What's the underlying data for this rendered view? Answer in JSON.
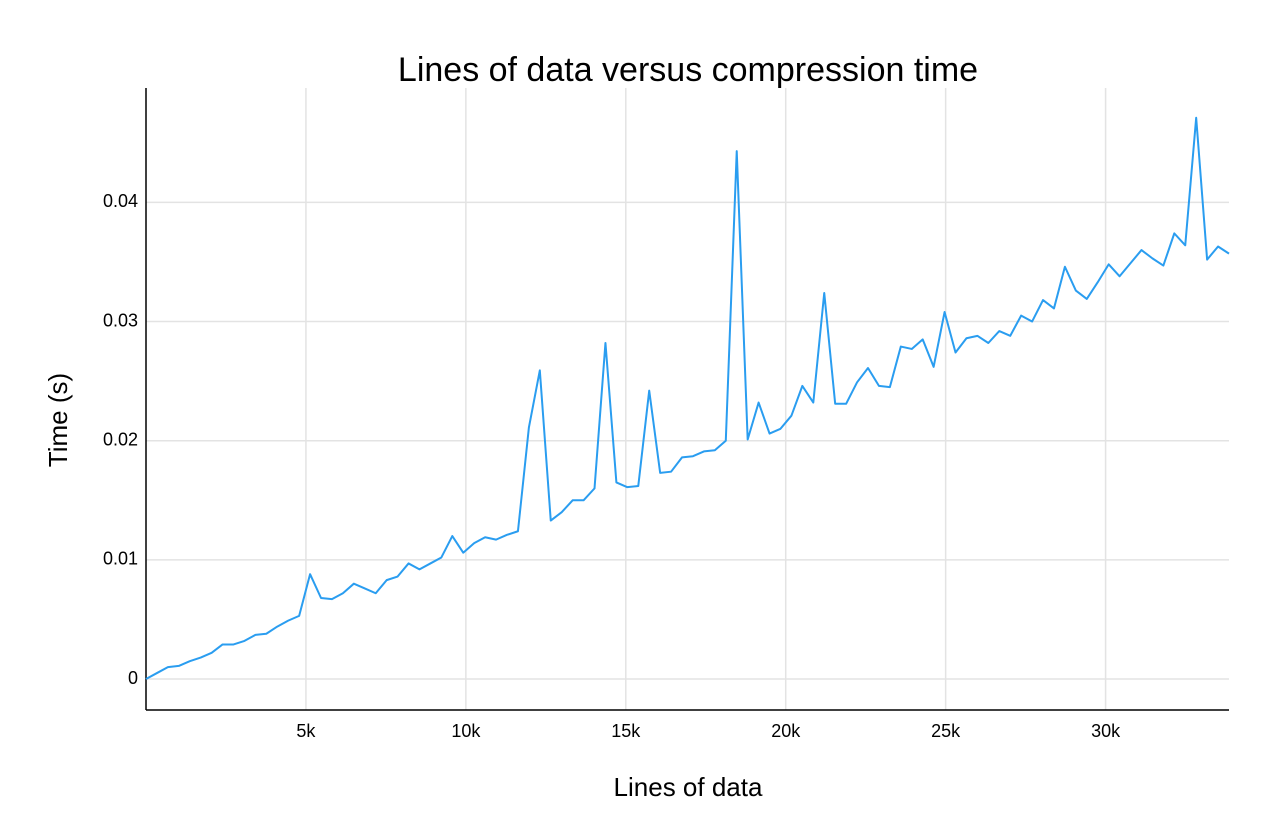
{
  "chart_data": {
    "type": "line",
    "title": "Lines of data versus compression time",
    "x_label": "Lines of data",
    "y_label": "Time (s)",
    "color": "#2a9df0",
    "grid": true,
    "x": [
      0,
      342,
      684,
      1026,
      1368,
      1710,
      2052,
      2394,
      2736,
      3078,
      3420,
      3762,
      4104,
      4446,
      4788,
      5130,
      5472,
      5814,
      6156,
      6498,
      6840,
      7182,
      7524,
      7866,
      8208,
      8550,
      8892,
      9234,
      9576,
      9918,
      10260,
      10602,
      10944,
      11286,
      11628,
      11970,
      12312,
      12654,
      12996,
      13338,
      13680,
      14022,
      14364,
      14706,
      15048,
      15390,
      15732,
      16074,
      16416,
      16758,
      17100,
      17442,
      17784,
      18126,
      18468,
      18810,
      19152,
      19494,
      19836,
      20178,
      20520,
      20862,
      21204,
      21546,
      21888,
      22230,
      22572,
      22914,
      23256,
      23598,
      23940,
      24282,
      24624,
      24966,
      25308,
      25650,
      25992,
      26334,
      26676,
      27018,
      27360,
      27702,
      28044,
      28386,
      28728,
      29070,
      29412,
      29754,
      30096,
      30438,
      30780,
      31122,
      31464,
      31806,
      32148,
      32490,
      32832,
      33174,
      33516,
      33858
    ],
    "values": [
      0,
      0.0005,
      0.001,
      0.0011,
      0.0015,
      0.0018,
      0.0022,
      0.0029,
      0.0029,
      0.0032,
      0.0037,
      0.0038,
      0.0044,
      0.0049,
      0.0053,
      0.0088,
      0.0068,
      0.0067,
      0.0072,
      0.008,
      0.0076,
      0.0072,
      0.0083,
      0.0086,
      0.0097,
      0.0092,
      0.0097,
      0.0102,
      0.012,
      0.0106,
      0.0114,
      0.0119,
      0.0117,
      0.0121,
      0.0124,
      0.0211,
      0.0259,
      0.0133,
      0.014,
      0.015,
      0.015,
      0.016,
      0.0282,
      0.0165,
      0.0161,
      0.0162,
      0.0242,
      0.0173,
      0.0174,
      0.0186,
      0.0187,
      0.0191,
      0.0192,
      0.02,
      0.0443,
      0.0201,
      0.0232,
      0.0206,
      0.021,
      0.0221,
      0.0246,
      0.0232,
      0.0324,
      0.0231,
      0.0231,
      0.0249,
      0.0261,
      0.0246,
      0.0245,
      0.0279,
      0.0277,
      0.0285,
      0.0262,
      0.0308,
      0.0274,
      0.0286,
      0.0288,
      0.0282,
      0.0292,
      0.0288,
      0.0305,
      0.03,
      0.0318,
      0.0311,
      0.0346,
      0.0326,
      0.0319,
      0.0333,
      0.0348,
      0.0338,
      0.0349,
      0.036,
      0.0353,
      0.0347,
      0.0374,
      0.0364,
      0.0471,
      0.0352,
      0.0363,
      0.0357
    ],
    "xlim": [
      0,
      33858
    ],
    "ylim": [
      -0.0026,
      0.0496
    ],
    "xticks": [
      {
        "value": 5000,
        "label": "5k"
      },
      {
        "value": 10000,
        "label": "10k"
      },
      {
        "value": 15000,
        "label": "15k"
      },
      {
        "value": 20000,
        "label": "20k"
      },
      {
        "value": 25000,
        "label": "25k"
      },
      {
        "value": 30000,
        "label": "30k"
      }
    ],
    "yticks": [
      0,
      0.01,
      0.02,
      0.03,
      0.04
    ]
  }
}
